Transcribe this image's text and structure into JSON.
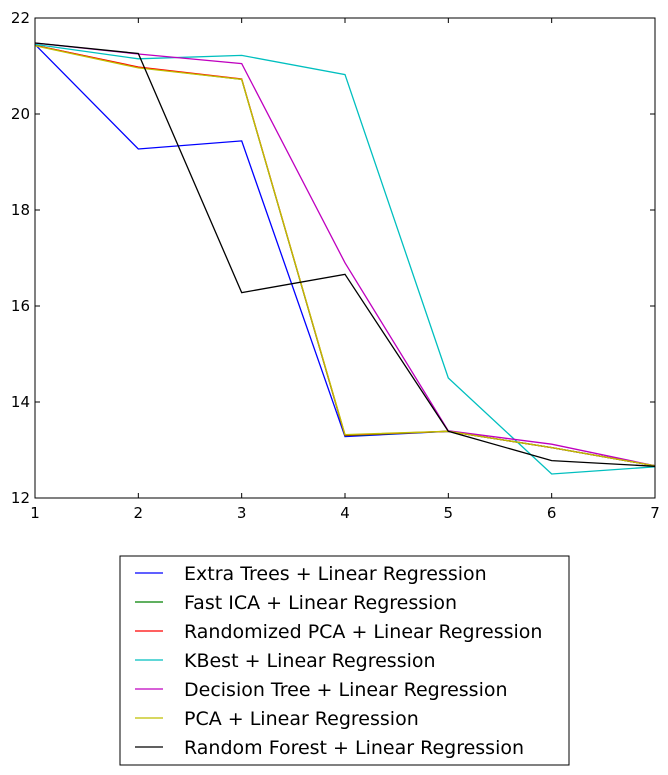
{
  "chart_data": {
    "type": "line",
    "title": "",
    "xlabel": "",
    "ylabel": "",
    "xlim": [
      1,
      7
    ],
    "ylim": [
      12,
      22
    ],
    "x": [
      1,
      2,
      3,
      4,
      5,
      6,
      7
    ],
    "xticks": [
      1,
      2,
      3,
      4,
      5,
      6,
      7
    ],
    "yticks": [
      12,
      14,
      16,
      18,
      20,
      22
    ],
    "grid": false,
    "legend_position": "below",
    "series": [
      {
        "name": "Extra Trees + Linear Regression",
        "color": "#0000ff",
        "values": [
          21.45,
          19.27,
          19.44,
          13.28,
          13.39,
          13.05,
          12.67
        ]
      },
      {
        "name": "Fast ICA + Linear Regression",
        "color": "#008000",
        "values": [
          21.43,
          20.97,
          20.72,
          13.3,
          13.39,
          13.05,
          12.67
        ]
      },
      {
        "name": "Randomized PCA + Linear Regression",
        "color": "#ff0000",
        "values": [
          21.43,
          20.98,
          20.73,
          13.31,
          13.39,
          13.05,
          12.67
        ]
      },
      {
        "name": "KBest + Linear Regression",
        "color": "#00bfbf",
        "values": [
          21.45,
          21.15,
          21.22,
          20.82,
          14.5,
          12.5,
          12.65
        ]
      },
      {
        "name": "Decision Tree + Linear Regression",
        "color": "#bf00bf",
        "values": [
          21.48,
          21.25,
          21.05,
          16.9,
          13.4,
          13.12,
          12.67
        ]
      },
      {
        "name": "PCA + Linear Regression",
        "color": "#bfbf00",
        "values": [
          21.42,
          20.96,
          20.72,
          13.32,
          13.39,
          13.05,
          12.67
        ]
      },
      {
        "name": "Random Forest + Linear Regression",
        "color": "#000000",
        "values": [
          21.48,
          21.26,
          16.28,
          16.66,
          13.39,
          12.78,
          12.66
        ]
      }
    ]
  }
}
